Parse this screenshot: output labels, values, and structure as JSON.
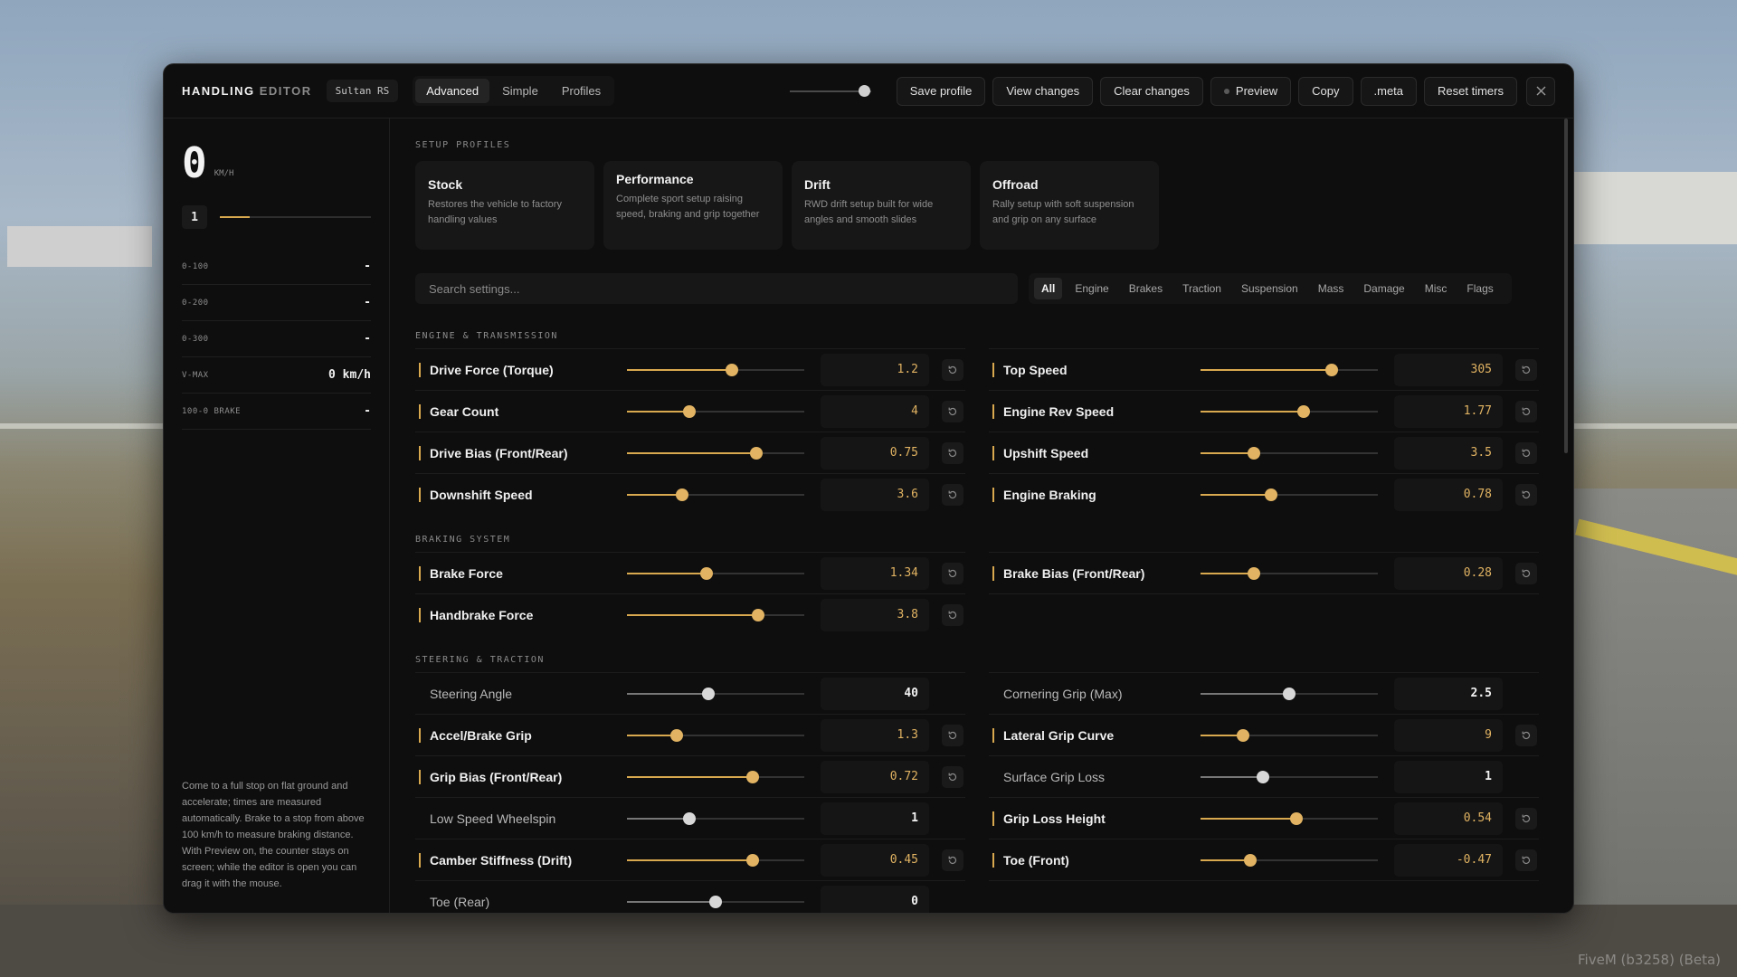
{
  "editor": {
    "brand_strong": "HANDLING",
    "brand_light": "EDITOR",
    "vehicle": "Sultan RS",
    "mode_tabs": [
      "Advanced",
      "Simple",
      "Profiles"
    ],
    "active_mode": "Advanced",
    "window_opacity": 0.93,
    "buttons": {
      "save_profile": "Save profile",
      "view_changes": "View changes",
      "clear_changes": "Clear changes",
      "preview": "Preview",
      "copy": "Copy",
      "meta": ".meta",
      "reset_timers": "Reset timers"
    }
  },
  "telemetry": {
    "speed": "0",
    "speed_unit": "KM/H",
    "gear": "1",
    "rpm_fraction": 0.2,
    "stats": [
      {
        "label": "0-100",
        "value": "-"
      },
      {
        "label": "0-200",
        "value": "-"
      },
      {
        "label": "0-300",
        "value": "-"
      },
      {
        "label": "V-MAX",
        "value": "0 km/h"
      },
      {
        "label": "100-0 BRAKE",
        "value": "-"
      }
    ],
    "note": "Come to a full stop on flat ground and accelerate; times are measured automatically. Brake to a stop from above 100 km/h to measure braking distance. With Preview on, the counter stays on screen; while the editor is open you can drag it with the mouse."
  },
  "profiles": {
    "title": "SETUP PROFILES",
    "items": [
      {
        "name": "Stock",
        "desc": "Restores the vehicle to factory handling values"
      },
      {
        "name": "Performance",
        "desc": "Complete sport setup raising speed, braking and grip together"
      },
      {
        "name": "Drift",
        "desc": "RWD drift setup built for wide angles and smooth slides"
      },
      {
        "name": "Offroad",
        "desc": "Rally setup with soft suspension and grip on any surface"
      }
    ]
  },
  "search": {
    "placeholder": "Search settings..."
  },
  "categories": [
    "All",
    "Engine",
    "Brakes",
    "Traction",
    "Suspension",
    "Mass",
    "Damage",
    "Misc",
    "Flags"
  ],
  "active_category": "All",
  "sections": [
    {
      "title": "ENGINE & TRANSMISSION",
      "left": [
        {
          "label": "Drive Force (Torque)",
          "value": "1.2",
          "level": 0.59,
          "modified": true
        },
        {
          "label": "Gear Count",
          "value": "4",
          "level": 0.35,
          "modified": true
        },
        {
          "label": "Drive Bias (Front/Rear)",
          "value": "0.75",
          "level": 0.73,
          "modified": true
        },
        {
          "label": "Downshift Speed",
          "value": "3.6",
          "level": 0.31,
          "modified": true
        }
      ],
      "right": [
        {
          "label": "Top Speed",
          "value": "305",
          "level": 0.74,
          "modified": true
        },
        {
          "label": "Engine Rev Speed",
          "value": "1.77",
          "level": 0.58,
          "modified": true
        },
        {
          "label": "Upshift Speed",
          "value": "3.5",
          "level": 0.3,
          "modified": true
        },
        {
          "label": "Engine Braking",
          "value": "0.78",
          "level": 0.4,
          "modified": true
        }
      ]
    },
    {
      "title": "BRAKING SYSTEM",
      "left": [
        {
          "label": "Brake Force",
          "value": "1.34",
          "level": 0.45,
          "modified": true
        },
        {
          "label": "Handbrake Force",
          "value": "3.8",
          "level": 0.74,
          "modified": true
        }
      ],
      "right": [
        {
          "label": "Brake Bias (Front/Rear)",
          "value": "0.28",
          "level": 0.3,
          "modified": true
        }
      ]
    },
    {
      "title": "STEERING & TRACTION",
      "left": [
        {
          "label": "Steering Angle",
          "value": "40",
          "level": 0.46,
          "modified": false
        },
        {
          "label": "Accel/Brake Grip",
          "value": "1.3",
          "level": 0.28,
          "modified": true
        },
        {
          "label": "Grip Bias (Front/Rear)",
          "value": "0.72",
          "level": 0.71,
          "modified": true
        },
        {
          "label": "Low Speed Wheelspin",
          "value": "1",
          "level": 0.35,
          "modified": false
        },
        {
          "label": "Camber Stiffness (Drift)",
          "value": "0.45",
          "level": 0.71,
          "modified": true
        },
        {
          "label": "Toe (Rear)",
          "value": "0",
          "level": 0.5,
          "modified": false
        }
      ],
      "right": [
        {
          "label": "Cornering Grip (Max)",
          "value": "2.5",
          "level": 0.5,
          "modified": false
        },
        {
          "label": "Lateral Grip Curve",
          "value": "9",
          "level": 0.24,
          "modified": true
        },
        {
          "label": "Surface Grip Loss",
          "value": "1",
          "level": 0.35,
          "modified": false
        },
        {
          "label": "Grip Loss Height",
          "value": "0.54",
          "level": 0.54,
          "modified": true
        },
        {
          "label": "Toe (Front)",
          "value": "-0.47",
          "level": 0.28,
          "modified": true
        }
      ]
    }
  ],
  "colors": {
    "accent": "#d9a94f",
    "panel": "#0e0e0e",
    "card": "#171717"
  },
  "footer_watermark": "FiveM (b3258) (Beta)"
}
